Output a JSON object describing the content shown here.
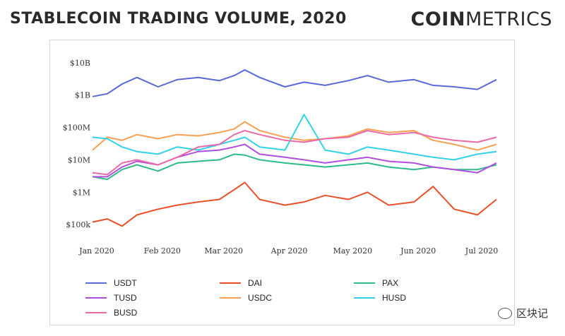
{
  "header": {
    "title": "STABLECOIN TRADING VOLUME, 2020",
    "logo_bold": "COIN",
    "logo_light": "METRICS"
  },
  "watermark": "区块记",
  "chart_data": {
    "type": "line",
    "title": "STABLECOIN TRADING VOLUME, 2020",
    "y_scale": "log",
    "ylim": [
      50000,
      20000000000
    ],
    "y_ticks": [
      {
        "value": 10000000000,
        "label": "$10B"
      },
      {
        "value": 1000000000,
        "label": "$1B"
      },
      {
        "value": 100000000,
        "label": "$100M"
      },
      {
        "value": 10000000,
        "label": "$10M"
      },
      {
        "value": 1000000,
        "label": "$1M"
      },
      {
        "value": 100000,
        "label": "$100k"
      }
    ],
    "x_ticks": [
      "Jan 2020",
      "Feb 2020",
      "Mar 2020",
      "Apr 2020",
      "May 2020",
      "Jun 2020",
      "Jul 2020"
    ],
    "grid": false,
    "legend": "bottom",
    "series": [
      {
        "name": "USDT",
        "color": "#5b68d8",
        "x": [
          "2020-01-01",
          "2020-01-08",
          "2020-01-15",
          "2020-01-22",
          "2020-02-01",
          "2020-02-10",
          "2020-02-20",
          "2020-03-01",
          "2020-03-08",
          "2020-03-13",
          "2020-03-20",
          "2020-04-01",
          "2020-04-10",
          "2020-04-20",
          "2020-05-01",
          "2020-05-10",
          "2020-05-20",
          "2020-06-01",
          "2020-06-10",
          "2020-06-20",
          "2020-07-01",
          "2020-07-10"
        ],
        "y": [
          900000000,
          1100000000,
          2200000000,
          3500000000,
          1800000000,
          3000000000,
          3500000000,
          2800000000,
          4000000000,
          6000000000,
          3500000000,
          1800000000,
          2500000000,
          2000000000,
          2800000000,
          4000000000,
          2500000000,
          3000000000,
          2000000000,
          1800000000,
          1500000000,
          3000000000
        ]
      },
      {
        "name": "DAI",
        "color": "#e8502a",
        "x": [
          "2020-01-01",
          "2020-01-08",
          "2020-01-15",
          "2020-01-22",
          "2020-02-01",
          "2020-02-10",
          "2020-02-20",
          "2020-03-01",
          "2020-03-08",
          "2020-03-13",
          "2020-03-20",
          "2020-04-01",
          "2020-04-10",
          "2020-04-20",
          "2020-05-01",
          "2020-05-10",
          "2020-05-20",
          "2020-06-01",
          "2020-06-10",
          "2020-06-20",
          "2020-07-01",
          "2020-07-10"
        ],
        "y": [
          120000,
          150000,
          90000,
          200000,
          300000,
          400000,
          500000,
          600000,
          1200000,
          2000000,
          600000,
          400000,
          500000,
          800000,
          600000,
          1000000,
          400000,
          500000,
          1500000,
          300000,
          200000,
          600000
        ]
      },
      {
        "name": "PAX",
        "color": "#2dbb8a",
        "x": [
          "2020-01-01",
          "2020-01-08",
          "2020-01-15",
          "2020-01-22",
          "2020-02-01",
          "2020-02-10",
          "2020-02-20",
          "2020-03-01",
          "2020-03-08",
          "2020-03-13",
          "2020-03-20",
          "2020-04-01",
          "2020-04-10",
          "2020-04-20",
          "2020-05-01",
          "2020-05-10",
          "2020-05-20",
          "2020-06-01",
          "2020-06-10",
          "2020-06-20",
          "2020-07-01",
          "2020-07-10"
        ],
        "y": [
          3000000,
          2500000,
          5000000,
          7000000,
          4500000,
          8000000,
          9000000,
          10000000,
          15000000,
          14000000,
          10000000,
          8000000,
          7000000,
          6000000,
          7000000,
          8000000,
          6000000,
          5000000,
          6000000,
          5000000,
          5000000,
          7000000
        ]
      },
      {
        "name": "TUSD",
        "color": "#b04ee0",
        "x": [
          "2020-01-01",
          "2020-01-08",
          "2020-01-15",
          "2020-01-22",
          "2020-02-01",
          "2020-02-10",
          "2020-02-20",
          "2020-03-01",
          "2020-03-08",
          "2020-03-13",
          "2020-03-20",
          "2020-04-01",
          "2020-04-10",
          "2020-04-20",
          "2020-05-01",
          "2020-05-10",
          "2020-05-20",
          "2020-06-01",
          "2020-06-10",
          "2020-06-20",
          "2020-07-01",
          "2020-07-10"
        ],
        "y": [
          3000000,
          3000000,
          6000000,
          9000000,
          7000000,
          12000000,
          18000000,
          20000000,
          25000000,
          30000000,
          15000000,
          12000000,
          10000000,
          8000000,
          10000000,
          12000000,
          9000000,
          8000000,
          6000000,
          5000000,
          4000000,
          8000000
        ]
      },
      {
        "name": "USDC",
        "color": "#f5a052",
        "x": [
          "2020-01-01",
          "2020-01-08",
          "2020-01-15",
          "2020-01-22",
          "2020-02-01",
          "2020-02-10",
          "2020-02-20",
          "2020-03-01",
          "2020-03-08",
          "2020-03-13",
          "2020-03-20",
          "2020-04-01",
          "2020-04-10",
          "2020-04-20",
          "2020-05-01",
          "2020-05-10",
          "2020-05-20",
          "2020-06-01",
          "2020-06-10",
          "2020-06-20",
          "2020-07-01",
          "2020-07-10"
        ],
        "y": [
          20000000,
          50000000,
          40000000,
          60000000,
          45000000,
          60000000,
          55000000,
          70000000,
          90000000,
          150000000,
          80000000,
          50000000,
          40000000,
          45000000,
          55000000,
          90000000,
          70000000,
          80000000,
          40000000,
          30000000,
          20000000,
          30000000
        ]
      },
      {
        "name": "HUSD",
        "color": "#33d0e8",
        "x": [
          "2020-01-01",
          "2020-01-08",
          "2020-01-15",
          "2020-01-22",
          "2020-02-01",
          "2020-02-10",
          "2020-02-20",
          "2020-03-01",
          "2020-03-08",
          "2020-03-13",
          "2020-03-20",
          "2020-04-01",
          "2020-04-10",
          "2020-04-20",
          "2020-05-01",
          "2020-05-10",
          "2020-05-20",
          "2020-06-01",
          "2020-06-10",
          "2020-06-20",
          "2020-07-01",
          "2020-07-10"
        ],
        "y": [
          50000000,
          45000000,
          25000000,
          18000000,
          15000000,
          25000000,
          20000000,
          30000000,
          40000000,
          50000000,
          25000000,
          20000000,
          250000000,
          20000000,
          15000000,
          25000000,
          20000000,
          15000000,
          12000000,
          10000000,
          15000000,
          18000000
        ]
      },
      {
        "name": "BUSD",
        "color": "#ea6aa8",
        "x": [
          "2020-01-01",
          "2020-01-08",
          "2020-01-15",
          "2020-01-22",
          "2020-02-01",
          "2020-02-10",
          "2020-02-20",
          "2020-03-01",
          "2020-03-08",
          "2020-03-13",
          "2020-03-20",
          "2020-04-01",
          "2020-04-10",
          "2020-04-20",
          "2020-05-01",
          "2020-05-10",
          "2020-05-20",
          "2020-06-01",
          "2020-06-10",
          "2020-06-20",
          "2020-07-01",
          "2020-07-10"
        ],
        "y": [
          4000000,
          3500000,
          8000000,
          10000000,
          7000000,
          12000000,
          25000000,
          30000000,
          60000000,
          80000000,
          60000000,
          40000000,
          35000000,
          45000000,
          50000000,
          80000000,
          60000000,
          70000000,
          50000000,
          40000000,
          35000000,
          50000000
        ]
      }
    ]
  }
}
